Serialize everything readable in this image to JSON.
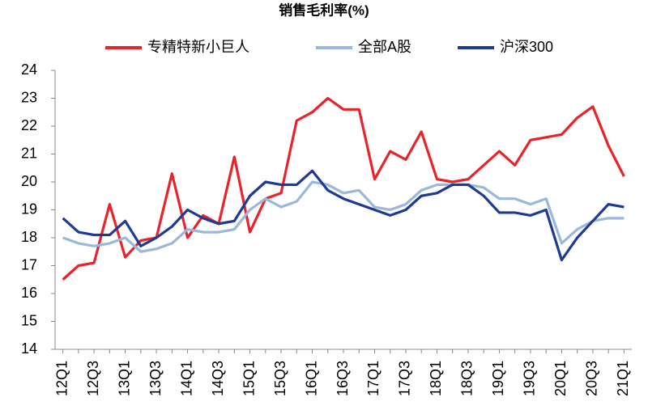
{
  "chart_data": {
    "type": "line",
    "title": "销售毛利率(%)",
    "categories": [
      "12Q1",
      null,
      "12Q3",
      null,
      "13Q1",
      null,
      "13Q3",
      null,
      "14Q1",
      null,
      "14Q3",
      null,
      "15Q1",
      null,
      "15Q3",
      null,
      "16Q1",
      null,
      "16Q3",
      null,
      "17Q1",
      null,
      "17Q3",
      null,
      "18Q1",
      null,
      "18Q3",
      null,
      "19Q1",
      null,
      "19Q3",
      null,
      "20Q1",
      null,
      "20Q3",
      null,
      "21Q1"
    ],
    "series": [
      {
        "name": "专精特新小巨人",
        "color": "#e8242a",
        "values": [
          16.5,
          17.0,
          17.1,
          19.2,
          17.3,
          17.9,
          18.0,
          20.3,
          18.0,
          18.8,
          18.5,
          20.9,
          18.2,
          19.4,
          19.6,
          22.2,
          22.5,
          23.0,
          22.6,
          22.6,
          20.1,
          21.1,
          20.8,
          21.8,
          20.1,
          20.0,
          20.1,
          20.6,
          21.1,
          20.6,
          21.5,
          21.6,
          21.7,
          22.3,
          22.7,
          21.3,
          20.2
        ]
      },
      {
        "name": "全部A股",
        "color": "#9bb7dc",
        "values": [
          18.0,
          17.8,
          17.7,
          17.8,
          18.0,
          17.5,
          17.6,
          17.8,
          18.3,
          18.2,
          18.2,
          18.3,
          19.0,
          19.4,
          19.1,
          19.3,
          20.0,
          19.9,
          19.6,
          19.7,
          19.1,
          19.0,
          19.2,
          19.7,
          19.9,
          19.9,
          19.9,
          19.8,
          19.4,
          19.4,
          19.2,
          19.4,
          17.8,
          18.3,
          18.6,
          18.7,
          18.7
        ]
      },
      {
        "name": "沪深300",
        "color": "#1f3a93",
        "values": [
          18.7,
          18.2,
          18.1,
          18.1,
          18.6,
          17.7,
          18.0,
          18.4,
          19.0,
          18.7,
          18.5,
          18.6,
          19.5,
          20.0,
          19.9,
          19.9,
          20.4,
          19.7,
          19.4,
          19.2,
          19.0,
          18.8,
          19.0,
          19.5,
          19.6,
          19.9,
          19.9,
          19.5,
          18.9,
          18.9,
          18.8,
          19.0,
          17.2,
          18.0,
          18.6,
          19.2,
          19.1
        ]
      }
    ],
    "ylim": [
      14,
      24
    ],
    "yticks": [
      14,
      15,
      16,
      17,
      18,
      19,
      20,
      21,
      22,
      23,
      24
    ],
    "grid": false
  }
}
